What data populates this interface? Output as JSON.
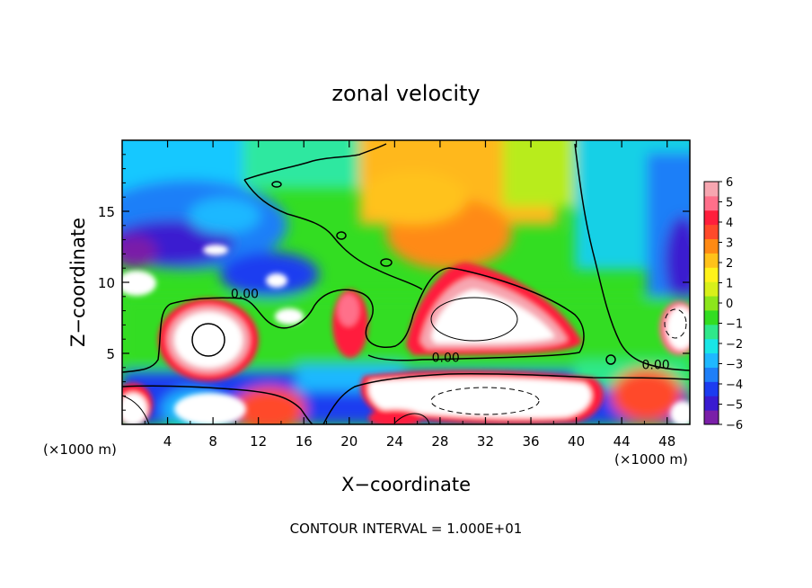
{
  "chart_data": {
    "type": "heatmap",
    "title": "zonal velocity",
    "xlabel": "X−coordinate",
    "ylabel": "Z−coordinate",
    "x_unit_left": "(×1000 m)",
    "x_unit_right": "(×1000 m)",
    "footer": "CONTOUR INTERVAL = 1.000E+01",
    "xlim": [
      0,
      50
    ],
    "ylim": [
      0,
      20
    ],
    "x_ticks": [
      4,
      8,
      12,
      16,
      20,
      24,
      28,
      32,
      36,
      40,
      44,
      48
    ],
    "x_tick_labels": [
      "4",
      "8",
      "12",
      "16",
      "20",
      "24",
      "28",
      "32",
      "36",
      "40",
      "44",
      "48"
    ],
    "y_ticks": [
      5,
      10,
      15
    ],
    "y_tick_labels": [
      "5",
      "10",
      "15"
    ],
    "colorbar": {
      "min": -6,
      "max": 6,
      "tick_values": [
        6,
        5,
        4,
        3,
        2,
        1,
        0,
        -1,
        -2,
        -3,
        -4,
        -5,
        -6
      ],
      "tick_labels": [
        "6",
        "5",
        "4",
        "3",
        "2",
        "1",
        "0",
        "−1",
        "−2",
        "−3",
        "−4",
        "−5",
        "−6"
      ],
      "colors": [
        "#7a1fa8",
        "#3a1bd0",
        "#1c3cf0",
        "#1e7ff8",
        "#1fb8ff",
        "#19e6e6",
        "#2fe88a",
        "#33dd22",
        "#8ce61c",
        "#d8f01a",
        "#fff21a",
        "#ffc21a",
        "#ff8a14",
        "#ff4a2a",
        "#ff1f3c",
        "#ff6f8a",
        "#f7a6b0"
      ]
    },
    "contour_labels": [
      {
        "text": "0.00",
        "x": 10.8,
        "z": 8.9
      },
      {
        "text": "0.00",
        "x": 28.5,
        "z": 4.4
      },
      {
        "text": "0.00",
        "x": 47.0,
        "z": 3.9
      }
    ]
  }
}
